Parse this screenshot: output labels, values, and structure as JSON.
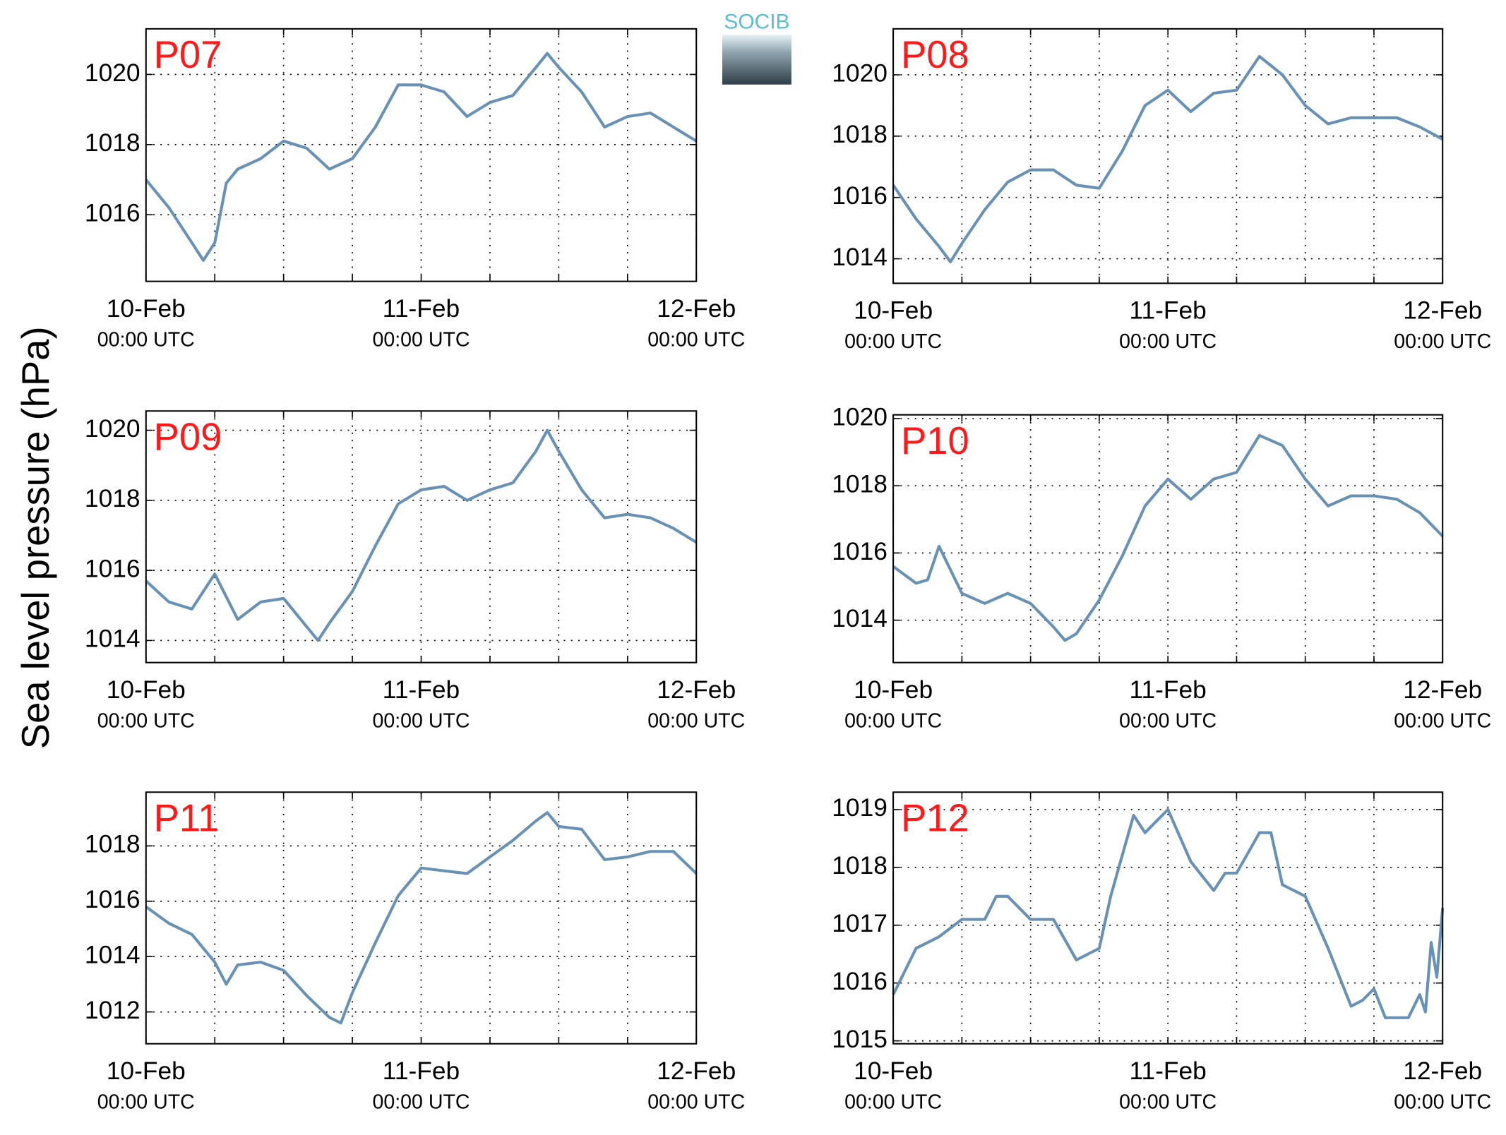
{
  "ylabel": "Sea level pressure (hPa)",
  "logo": "SOCIB",
  "chart_data": [
    {
      "type": "line",
      "title": "P07",
      "color": "#6891b6",
      "xlim": [
        0,
        48
      ],
      "ylim": [
        1014.1,
        1021.3
      ],
      "grid": true,
      "xticks": [
        {
          "value": 0,
          "label": "10-Feb",
          "sublabel": "00:00 UTC"
        },
        {
          "value": 24,
          "label": "11-Feb",
          "sublabel": "00:00 UTC"
        },
        {
          "value": 48,
          "label": "12-Feb",
          "sublabel": "00:00 UTC"
        }
      ],
      "xminor": [
        6,
        12,
        18,
        30,
        36,
        42
      ],
      "yticks": [
        1016,
        1018,
        1020
      ],
      "x": [
        0,
        2,
        4,
        5,
        6,
        7,
        8,
        10,
        12,
        14,
        16,
        18,
        20,
        22,
        24,
        26,
        28,
        30,
        32,
        34,
        35,
        36,
        38,
        40,
        42,
        44,
        46,
        48
      ],
      "values": [
        1017.0,
        1016.2,
        1015.2,
        1014.7,
        1015.2,
        1016.9,
        1017.3,
        1017.6,
        1018.1,
        1017.9,
        1017.3,
        1017.6,
        1018.5,
        1019.7,
        1019.7,
        1019.5,
        1018.8,
        1019.2,
        1019.4,
        1020.2,
        1020.6,
        1020.2,
        1019.5,
        1018.5,
        1018.8,
        1018.9,
        1018.5,
        1018.1
      ]
    },
    {
      "type": "line",
      "title": "P08",
      "color": "#6891b6",
      "xlim": [
        0,
        48
      ],
      "ylim": [
        1013.2,
        1021.5
      ],
      "grid": true,
      "xticks": [
        {
          "value": 0,
          "label": "10-Feb",
          "sublabel": "00:00 UTC"
        },
        {
          "value": 24,
          "label": "11-Feb",
          "sublabel": "00:00 UTC"
        },
        {
          "value": 48,
          "label": "12-Feb",
          "sublabel": "00:00 UTC"
        }
      ],
      "xminor": [
        6,
        12,
        18,
        30,
        36,
        42
      ],
      "yticks": [
        1014,
        1016,
        1018,
        1020
      ],
      "x": [
        0,
        2,
        4,
        5,
        6,
        8,
        10,
        12,
        14,
        16,
        18,
        20,
        22,
        24,
        26,
        28,
        30,
        32,
        34,
        36,
        38,
        40,
        42,
        44,
        46,
        48
      ],
      "values": [
        1016.4,
        1015.3,
        1014.4,
        1013.9,
        1014.5,
        1015.6,
        1016.5,
        1016.9,
        1016.9,
        1016.4,
        1016.3,
        1017.5,
        1019.0,
        1019.5,
        1018.8,
        1019.4,
        1019.5,
        1020.6,
        1020.0,
        1019.0,
        1018.4,
        1018.6,
        1018.6,
        1018.6,
        1018.3,
        1017.9
      ]
    },
    {
      "type": "line",
      "title": "P09",
      "color": "#6891b6",
      "xlim": [
        0,
        48
      ],
      "ylim": [
        1013.37,
        1020.55
      ],
      "grid": true,
      "xticks": [
        {
          "value": 0,
          "label": "10-Feb",
          "sublabel": "00:00 UTC"
        },
        {
          "value": 24,
          "label": "11-Feb",
          "sublabel": "00:00 UTC"
        },
        {
          "value": 48,
          "label": "12-Feb",
          "sublabel": "00:00 UTC"
        }
      ],
      "xminor": [
        6,
        12,
        18,
        30,
        36,
        42
      ],
      "yticks": [
        1014,
        1016,
        1018,
        1020
      ],
      "x": [
        0,
        2,
        4,
        6,
        8,
        10,
        12,
        14,
        15,
        16,
        18,
        20,
        22,
        24,
        26,
        28,
        30,
        32,
        34,
        35,
        36,
        38,
        40,
        42,
        44,
        46,
        48
      ],
      "values": [
        1015.7,
        1015.1,
        1014.9,
        1015.9,
        1014.6,
        1015.1,
        1015.2,
        1014.4,
        1014.0,
        1014.5,
        1015.4,
        1016.7,
        1017.9,
        1018.3,
        1018.4,
        1018.0,
        1018.3,
        1018.5,
        1019.4,
        1020.0,
        1019.4,
        1018.3,
        1017.5,
        1017.6,
        1017.5,
        1017.2,
        1016.8
      ]
    },
    {
      "type": "line",
      "title": "P10",
      "color": "#6891b6",
      "xlim": [
        0,
        48
      ],
      "ylim": [
        1012.74,
        1020.11
      ],
      "grid": true,
      "xticks": [
        {
          "value": 0,
          "label": "10-Feb",
          "sublabel": "00:00 UTC"
        },
        {
          "value": 24,
          "label": "11-Feb",
          "sublabel": "00:00 UTC"
        },
        {
          "value": 48,
          "label": "12-Feb",
          "sublabel": "00:00 UTC"
        }
      ],
      "xminor": [
        6,
        12,
        18,
        30,
        36,
        42
      ],
      "yticks": [
        1014,
        1016,
        1018,
        1020
      ],
      "x": [
        0,
        2,
        3,
        4,
        6,
        8,
        10,
        12,
        14,
        15,
        16,
        18,
        20,
        22,
        24,
        26,
        28,
        30,
        32,
        34,
        36,
        38,
        40,
        42,
        44,
        46,
        48
      ],
      "values": [
        1015.6,
        1015.1,
        1015.2,
        1016.2,
        1014.8,
        1014.5,
        1014.8,
        1014.5,
        1013.8,
        1013.4,
        1013.6,
        1014.6,
        1015.9,
        1017.4,
        1018.2,
        1017.6,
        1018.2,
        1018.4,
        1019.5,
        1019.2,
        1018.2,
        1017.4,
        1017.7,
        1017.7,
        1017.6,
        1017.2,
        1016.5
      ]
    },
    {
      "type": "line",
      "title": "P11",
      "color": "#6891b6",
      "xlim": [
        0,
        48
      ],
      "ylim": [
        1010.85,
        1019.94
      ],
      "grid": true,
      "xticks": [
        {
          "value": 0,
          "label": "10-Feb",
          "sublabel": "00:00 UTC"
        },
        {
          "value": 24,
          "label": "11-Feb",
          "sublabel": "00:00 UTC"
        },
        {
          "value": 48,
          "label": "12-Feb",
          "sublabel": "00:00 UTC"
        }
      ],
      "xminor": [
        6,
        12,
        18,
        30,
        36,
        42
      ],
      "yticks": [
        1012,
        1014,
        1016,
        1018
      ],
      "x": [
        0,
        2,
        4,
        6,
        7,
        8,
        10,
        12,
        14,
        16,
        17,
        18,
        20,
        22,
        24,
        26,
        28,
        30,
        32,
        34,
        35,
        36,
        38,
        40,
        42,
        44,
        46,
        48
      ],
      "values": [
        1015.8,
        1015.2,
        1014.8,
        1013.8,
        1013.0,
        1013.7,
        1013.8,
        1013.5,
        1012.6,
        1011.8,
        1011.6,
        1012.7,
        1014.5,
        1016.2,
        1017.2,
        1017.1,
        1017.0,
        1017.6,
        1018.2,
        1018.9,
        1019.2,
        1018.7,
        1018.6,
        1017.5,
        1017.6,
        1017.8,
        1017.8,
        1017.0
      ]
    },
    {
      "type": "line",
      "title": "P12",
      "color": "#6891b6",
      "xlim": [
        0,
        48
      ],
      "ylim": [
        1014.95,
        1019.3
      ],
      "grid": true,
      "xticks": [
        {
          "value": 0,
          "label": "10-Feb",
          "sublabel": "00:00 UTC"
        },
        {
          "value": 24,
          "label": "11-Feb",
          "sublabel": "00:00 UTC"
        },
        {
          "value": 48,
          "label": "12-Feb",
          "sublabel": "00:00 UTC"
        }
      ],
      "xminor": [
        6,
        12,
        18,
        30,
        36,
        42
      ],
      "yticks": [
        1015,
        1016,
        1017,
        1018,
        1019
      ],
      "x": [
        0,
        2,
        4,
        6,
        8,
        9,
        10,
        12,
        14,
        16,
        18,
        19,
        20,
        21,
        22,
        24,
        26,
        28,
        29,
        30,
        32,
        33,
        34,
        36,
        38,
        40,
        41,
        42,
        43,
        45,
        46,
        46.5,
        47,
        47.5,
        48
      ],
      "values": [
        1015.8,
        1016.6,
        1016.8,
        1017.1,
        1017.1,
        1017.5,
        1017.5,
        1017.1,
        1017.1,
        1016.4,
        1016.6,
        1017.5,
        1018.2,
        1018.9,
        1018.6,
        1019.0,
        1018.1,
        1017.6,
        1017.9,
        1017.9,
        1018.6,
        1018.6,
        1017.7,
        1017.5,
        1016.6,
        1015.6,
        1015.7,
        1015.9,
        1015.4,
        1015.4,
        1015.8,
        1015.5,
        1016.7,
        1016.1,
        1017.3
      ]
    }
  ]
}
